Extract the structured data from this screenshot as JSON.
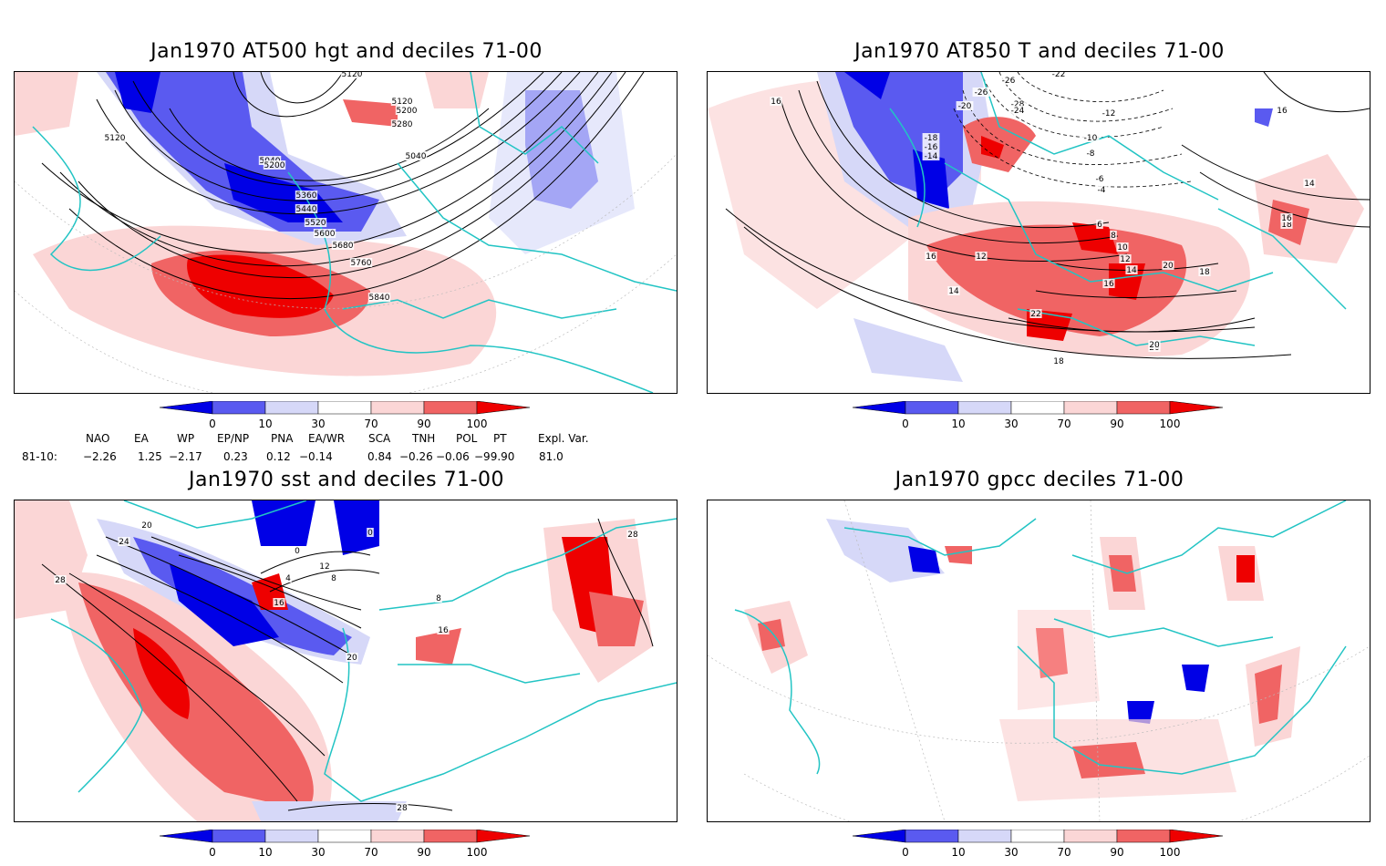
{
  "panels": [
    {
      "id": "p1",
      "title": "Jan1970 AT500 hgt and deciles 71-00",
      "contour_labels": [
        "5040",
        "5040",
        "5120",
        "5120",
        "5120",
        "5200",
        "5200",
        "5280",
        "5360",
        "5440",
        "5520",
        "5600",
        "5680",
        "5760",
        "5840"
      ]
    },
    {
      "id": "p2",
      "title": "Jan1970 AT850 T and deciles 71-00",
      "contour_labels": [
        "16",
        "16",
        "16",
        "-26",
        "-22",
        "-26",
        "-20",
        "-28",
        "-24",
        "-18",
        "-16",
        "-14",
        "-12",
        "-10",
        "-8",
        "-6",
        "-4",
        "12",
        "14",
        "6",
        "8",
        "10",
        "12",
        "14",
        "16",
        "18",
        "20",
        "22",
        "20",
        "18",
        "14",
        "18",
        "16",
        "20"
      ]
    },
    {
      "id": "p3",
      "title": "Jan1970 sst and deciles 71-00",
      "contour_labels": [
        "20",
        "24",
        "28",
        "0",
        "4",
        "8",
        "12",
        "16",
        "20",
        "0",
        "28",
        "28",
        "8",
        "16"
      ]
    },
    {
      "id": "p4",
      "title": "Jan1970 gpcc deciles 71-00",
      "contour_labels": []
    }
  ],
  "colorbar": {
    "labels": [
      "0",
      "10",
      "30",
      "70",
      "90",
      "100"
    ],
    "colors": [
      "#0000e6",
      "#5a5af0",
      "#d6d8f8",
      "#ffffff",
      "#fbd6d6",
      "#f06464",
      "#ee0000"
    ]
  },
  "indices": {
    "headers": [
      "NAO",
      "EA",
      "WP",
      "EP/NP",
      "PNA",
      "EA/WR",
      "SCA",
      "TNH",
      "POL",
      "PT",
      "Expl. Var."
    ],
    "row_label": "81-10:",
    "values": [
      "−2.26",
      "1.25",
      "−2.17",
      "0.23",
      "0.12",
      "−0.14",
      "0.84",
      "−0.26",
      "−0.06",
      "−99.90",
      "81.0"
    ]
  }
}
